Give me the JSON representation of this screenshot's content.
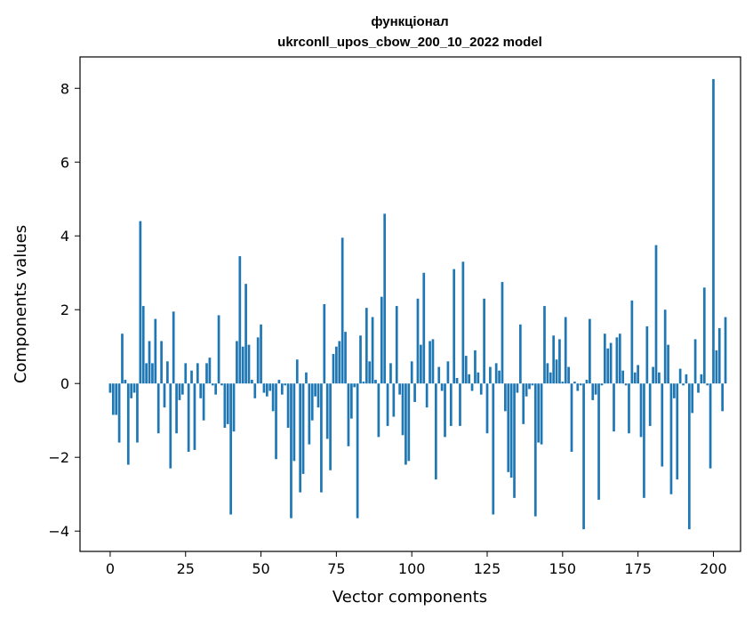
{
  "chart_data": {
    "type": "bar",
    "title_lines": [
      "функціонал",
      "ukrconll_upos_cbow_200_10_2022 model"
    ],
    "xlabel": "Vector components",
    "ylabel": "Components values",
    "xlim": [
      -10,
      209
    ],
    "ylim": [
      -4.55,
      8.85
    ],
    "xticks": [
      0,
      25,
      50,
      75,
      100,
      125,
      150,
      175,
      200
    ],
    "yticks": [
      -4,
      -2,
      0,
      2,
      4,
      6,
      8
    ],
    "color": "#1f77b4",
    "grid": false,
    "values": [
      -0.25,
      -0.85,
      -0.85,
      -1.6,
      1.35,
      0.1,
      -2.2,
      -0.4,
      -0.25,
      -1.6,
      4.4,
      2.1,
      0.55,
      1.15,
      0.55,
      1.75,
      -1.35,
      1.15,
      -0.65,
      0.6,
      -2.3,
      1.95,
      -1.35,
      -0.45,
      -0.3,
      0.55,
      -1.85,
      0.35,
      -1.8,
      0.55,
      -0.4,
      -1.0,
      0.55,
      0.7,
      -0.05,
      -0.3,
      1.85,
      -0.05,
      -1.2,
      -1.1,
      -3.55,
      -1.3,
      1.15,
      3.45,
      1.0,
      2.7,
      1.05,
      0.1,
      -0.4,
      1.25,
      1.6,
      -0.25,
      -0.35,
      -0.2,
      -0.75,
      -2.05,
      0.1,
      -0.3,
      -0.05,
      -1.2,
      -3.65,
      -2.1,
      0.65,
      -2.95,
      -2.45,
      0.3,
      -1.65,
      -1.0,
      -0.35,
      -0.65,
      -2.95,
      2.15,
      -1.5,
      -2.35,
      0.8,
      1.0,
      1.15,
      3.95,
      1.4,
      -1.7,
      -0.95,
      -0.1,
      -3.65,
      1.3,
      0.05,
      2.05,
      0.6,
      1.8,
      0.1,
      -1.45,
      2.35,
      4.6,
      -1.15,
      0.55,
      -0.9,
      2.1,
      -0.3,
      -1.4,
      -2.2,
      -2.1,
      0.6,
      -0.5,
      2.3,
      1.05,
      3.0,
      -0.65,
      1.15,
      1.2,
      -2.6,
      0.45,
      -0.2,
      -1.45,
      0.6,
      -1.15,
      3.1,
      0.15,
      -1.15,
      3.3,
      0.75,
      0.25,
      -0.2,
      0.9,
      0.3,
      -0.3,
      2.3,
      -1.35,
      0.45,
      -3.55,
      0.55,
      0.35,
      2.75,
      -0.75,
      -2.4,
      -2.55,
      -3.1,
      -0.25,
      1.6,
      -1.1,
      -0.35,
      -0.15,
      -0.05,
      -3.6,
      -1.6,
      -1.65,
      2.1,
      0.55,
      0.3,
      1.3,
      0.65,
      1.2,
      0.05,
      1.8,
      0.45,
      -1.85,
      0.05,
      -0.2,
      -0.05,
      -3.95,
      0.1,
      1.75,
      -0.45,
      -0.3,
      -3.15,
      -0.05,
      1.35,
      0.95,
      1.1,
      -1.3,
      1.25,
      1.35,
      0.35,
      -0.05,
      -1.35,
      2.25,
      0.3,
      0.5,
      -1.45,
      -3.1,
      1.55,
      -1.15,
      0.45,
      3.75,
      0.3,
      -2.25,
      2.0,
      1.05,
      -3.0,
      -0.4,
      -2.6,
      0.4,
      -0.05,
      0.25,
      -3.95,
      -0.8,
      1.2,
      -0.25,
      0.25,
      2.6,
      -0.05,
      -2.3,
      8.25,
      0.9,
      1.5,
      -0.75,
      1.8
    ]
  }
}
